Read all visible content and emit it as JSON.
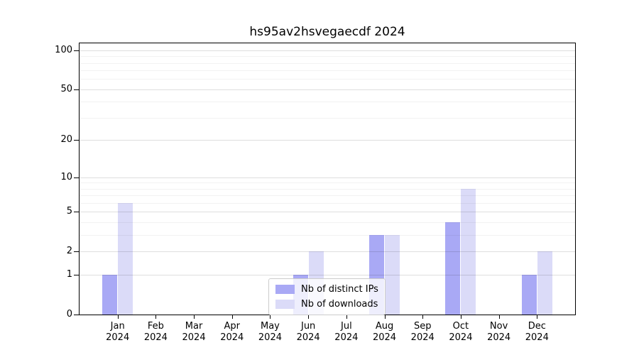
{
  "figure": {
    "title": "hs95av2hsvegaecdf 2024",
    "background_color": "#ffffff",
    "axis_color": "#000000",
    "gridline_major_color": "#dddddd",
    "gridline_minor_color": "#f2f2f2"
  },
  "chart_data": {
    "type": "bar",
    "title": "hs95av2hsvegaecdf 2024",
    "xlabel": "",
    "ylabel": "",
    "year": "2024",
    "categories": [
      "Jan",
      "Feb",
      "Mar",
      "Apr",
      "May",
      "Jun",
      "Jul",
      "Aug",
      "Sep",
      "Oct",
      "Nov",
      "Dec"
    ],
    "series": [
      {
        "name": "Nb of distinct IPs",
        "color": "#a9a9f5",
        "values": [
          1,
          0,
          0,
          0,
          0,
          1,
          0,
          3,
          0,
          4,
          0,
          1
        ]
      },
      {
        "name": "Nb of downloads",
        "color": "#dbdbf8",
        "values": [
          6,
          0,
          0,
          0,
          0,
          2,
          0,
          3,
          0,
          8,
          0,
          2
        ]
      }
    ],
    "yscale": "log1p",
    "ylim": [
      0,
      113
    ],
    "yticks": [
      0,
      1,
      2,
      5,
      10,
      20,
      50,
      100
    ],
    "yticks_minor": [
      3,
      4,
      6,
      7,
      8,
      9,
      30,
      40,
      60,
      70,
      80,
      90
    ],
    "grid": true,
    "legend_position": "lower center"
  }
}
